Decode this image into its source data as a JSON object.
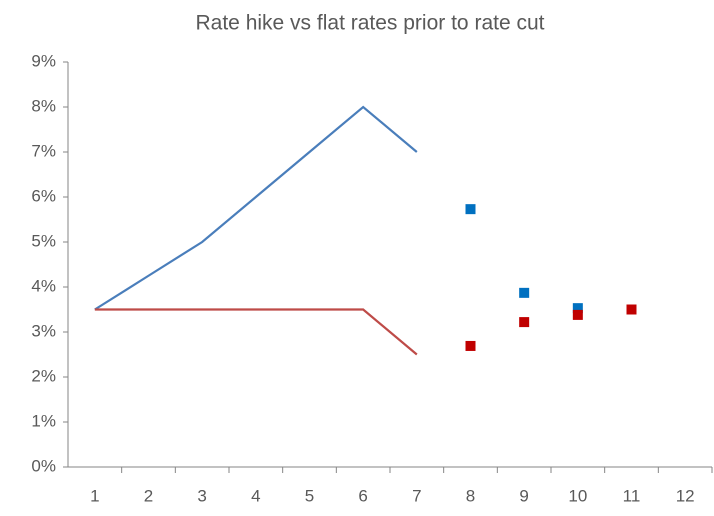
{
  "chart_data": {
    "type": "line",
    "title": "Rate hike vs flat rates prior to rate cut",
    "categories": [
      "1",
      "2",
      "3",
      "4",
      "5",
      "6",
      "7",
      "8",
      "9",
      "10",
      "11",
      "12"
    ],
    "series": [
      {
        "color": "#4a7ebb",
        "mark": "line",
        "values": [
          3.5,
          4.25,
          5.0,
          6.0,
          7.0,
          8.0,
          7.0,
          null,
          null,
          null,
          null,
          null
        ]
      },
      {
        "color": "#be4b48",
        "mark": "line",
        "values": [
          3.5,
          3.5,
          3.5,
          3.5,
          3.5,
          3.5,
          2.5,
          null,
          null,
          null,
          null,
          null
        ]
      },
      {
        "color": "#0070c0",
        "mark": "square",
        "values": [
          null,
          null,
          null,
          null,
          null,
          null,
          null,
          5.73,
          3.87,
          3.53,
          3.5,
          null
        ]
      },
      {
        "color": "#c00000",
        "mark": "square",
        "values": [
          null,
          null,
          null,
          null,
          null,
          null,
          null,
          2.69,
          3.22,
          3.38,
          3.5,
          null
        ]
      }
    ],
    "ylim": [
      0,
      9
    ],
    "yticks": [
      {
        "value": 0,
        "label": "0%"
      },
      {
        "value": 1,
        "label": "1%"
      },
      {
        "value": 2,
        "label": "2%"
      },
      {
        "value": 3,
        "label": "3%"
      },
      {
        "value": 4,
        "label": "4%"
      },
      {
        "value": 5,
        "label": "5%"
      },
      {
        "value": 6,
        "label": "6%"
      },
      {
        "value": 7,
        "label": "7%"
      },
      {
        "value": 8,
        "label": "8%"
      },
      {
        "value": 9,
        "label": "9%"
      }
    ],
    "grid": false
  }
}
